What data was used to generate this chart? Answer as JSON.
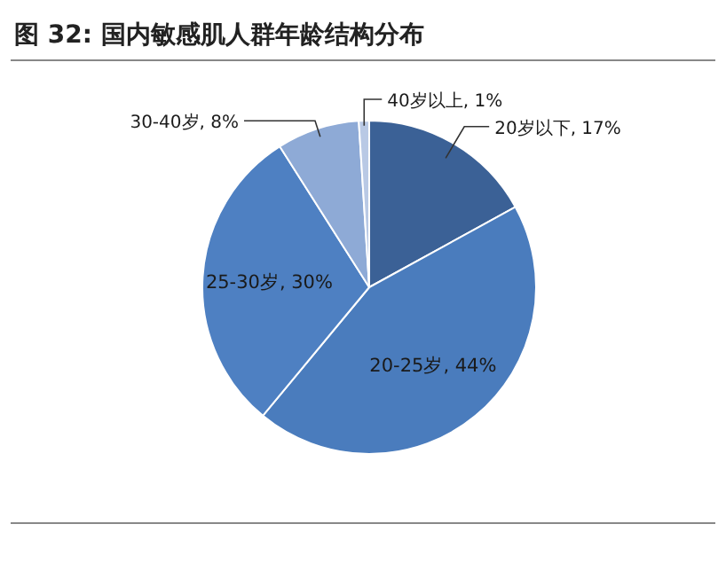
{
  "chart_data": {
    "type": "pie",
    "title": "图 32:  国内敏感肌人群年龄结构分布",
    "categories": [
      "20岁以下",
      "20-25岁",
      "25-30岁",
      "30-40岁",
      "40岁以上"
    ],
    "values": [
      17,
      44,
      30,
      8,
      1
    ],
    "colors": [
      "#3b6196",
      "#4a7cbd",
      "#4e80c2",
      "#8eaad6",
      "#b9c9e5"
    ],
    "value_labels": [
      ", 17%",
      ", 44%",
      ", 30%",
      ", 8%",
      ", 1%"
    ]
  }
}
